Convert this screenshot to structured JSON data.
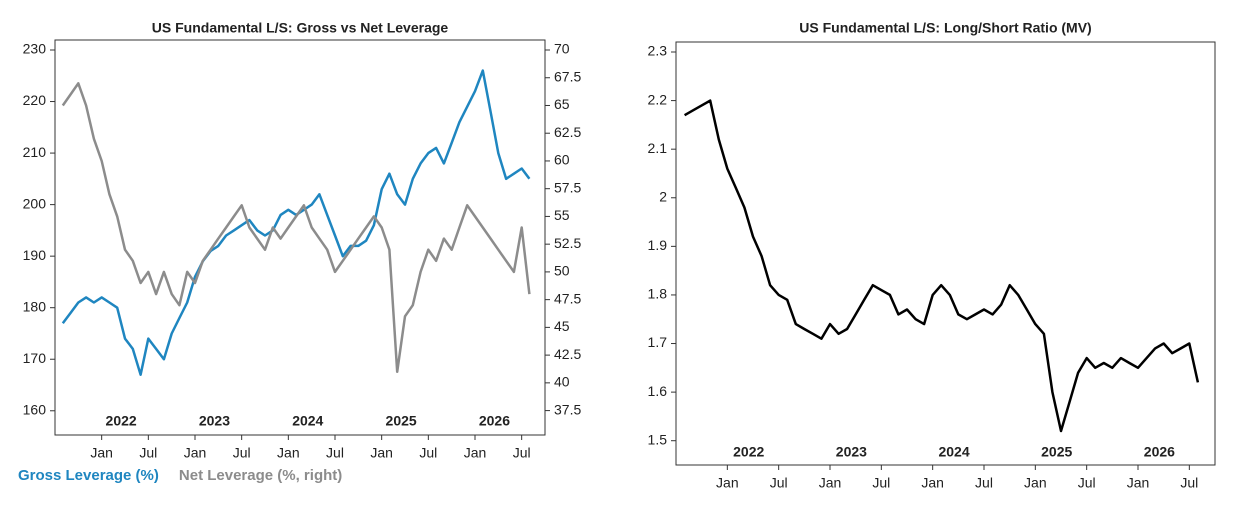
{
  "chart_data": [
    {
      "type": "line",
      "title": "US Fundamental L/S: Gross vs Net Leverage",
      "x": [
        "2021-08",
        "2021-09",
        "2021-10",
        "2021-11",
        "2021-12",
        "2022-01",
        "2022-02",
        "2022-03",
        "2022-04",
        "2022-05",
        "2022-06",
        "2022-07",
        "2022-08",
        "2022-09",
        "2022-10",
        "2022-11",
        "2022-12",
        "2023-01",
        "2023-02",
        "2023-03",
        "2023-04",
        "2023-05",
        "2023-06",
        "2023-07",
        "2023-08",
        "2023-09",
        "2023-10",
        "2023-11",
        "2023-12",
        "2024-01",
        "2024-02",
        "2024-03",
        "2024-04",
        "2024-05",
        "2024-06",
        "2024-07",
        "2024-08",
        "2024-09",
        "2024-10",
        "2024-11",
        "2024-12",
        "2025-01",
        "2025-02",
        "2025-03",
        "2025-04",
        "2025-05",
        "2025-06",
        "2025-07",
        "2025-08",
        "2025-09",
        "2025-10",
        "2025-11",
        "2025-12",
        "2026-01",
        "2026-02",
        "2026-03",
        "2026-04",
        "2026-05",
        "2026-06",
        "2026-07",
        "2026-08"
      ],
      "xlim": [
        "2021-07",
        "2026-10"
      ],
      "xticks": [
        {
          "value": "2022-01",
          "label": "Jan"
        },
        {
          "value": "2022-07",
          "label": "Jul"
        },
        {
          "value": "2023-01",
          "label": "Jan"
        },
        {
          "value": "2023-07",
          "label": "Jul"
        },
        {
          "value": "2024-01",
          "label": "Jan"
        },
        {
          "value": "2024-07",
          "label": "Jul"
        },
        {
          "value": "2025-01",
          "label": "Jan"
        },
        {
          "value": "2025-07",
          "label": "Jul"
        },
        {
          "value": "2026-01",
          "label": "Jan"
        },
        {
          "value": "2026-07",
          "label": "Jul"
        }
      ],
      "years": [
        "2022",
        "2023",
        "2024",
        "2025",
        "2026"
      ],
      "ylim": [
        155.3,
        230
      ],
      "yticks": [
        160,
        170,
        180,
        190,
        200,
        210,
        220,
        230
      ],
      "y2lim": [
        35.3,
        70
      ],
      "y2ticks": [
        37.5,
        40,
        42.5,
        45,
        47.5,
        50,
        52.5,
        55,
        57.5,
        60,
        62.5,
        65,
        67.5,
        70
      ],
      "series": [
        {
          "name": "Gross Leverage (%)",
          "color": "#1f86c0",
          "axis": "y",
          "values": [
            177,
            179,
            181,
            182,
            181,
            182,
            181,
            180,
            174,
            172,
            167,
            174,
            172,
            170,
            175,
            178,
            181,
            186,
            189,
            191,
            192,
            194,
            195,
            196,
            197,
            195,
            194,
            195,
            198,
            199,
            198,
            199,
            200,
            202,
            198,
            194,
            190,
            192,
            192,
            193,
            196,
            203,
            206,
            202,
            200,
            205,
            208,
            210,
            211,
            208,
            212,
            216,
            219,
            222,
            226,
            218,
            210,
            205,
            206,
            207,
            205
          ]
        },
        {
          "name": "Net Leverage (%, right)",
          "color": "#8c8c8c",
          "axis": "y2",
          "values": [
            65,
            66,
            67,
            65,
            62,
            60,
            57,
            55,
            52,
            51,
            49,
            50,
            48,
            50,
            48,
            47,
            50,
            49,
            51,
            52,
            53,
            54,
            55,
            56,
            54,
            53,
            52,
            54,
            53,
            54,
            55,
            56,
            54,
            53,
            52,
            50,
            51,
            52,
            53,
            54,
            55,
            54,
            52,
            41,
            46,
            47,
            50,
            52,
            51,
            53,
            52,
            54,
            56,
            55,
            54,
            53,
            52,
            51,
            50,
            54,
            48
          ]
        }
      ]
    },
    {
      "type": "line",
      "title": "US Fundamental L/S: Long/Short Ratio (MV)",
      "x": [
        "2021-08",
        "2021-09",
        "2021-10",
        "2021-11",
        "2021-12",
        "2022-01",
        "2022-02",
        "2022-03",
        "2022-04",
        "2022-05",
        "2022-06",
        "2022-07",
        "2022-08",
        "2022-09",
        "2022-10",
        "2022-11",
        "2022-12",
        "2023-01",
        "2023-02",
        "2023-03",
        "2023-04",
        "2023-05",
        "2023-06",
        "2023-07",
        "2023-08",
        "2023-09",
        "2023-10",
        "2023-11",
        "2023-12",
        "2024-01",
        "2024-02",
        "2024-03",
        "2024-04",
        "2024-05",
        "2024-06",
        "2024-07",
        "2024-08",
        "2024-09",
        "2024-10",
        "2024-11",
        "2024-12",
        "2025-01",
        "2025-02",
        "2025-03",
        "2025-04",
        "2025-05",
        "2025-06",
        "2025-07",
        "2025-08",
        "2025-09",
        "2025-10",
        "2025-11",
        "2025-12",
        "2026-01",
        "2026-02",
        "2026-03",
        "2026-04",
        "2026-05",
        "2026-06",
        "2026-07",
        "2026-08"
      ],
      "xlim": [
        "2021-07",
        "2026-10"
      ],
      "xticks": [
        {
          "value": "2022-01",
          "label": "Jan"
        },
        {
          "value": "2022-07",
          "label": "Jul"
        },
        {
          "value": "2023-01",
          "label": "Jan"
        },
        {
          "value": "2023-07",
          "label": "Jul"
        },
        {
          "value": "2024-01",
          "label": "Jan"
        },
        {
          "value": "2024-07",
          "label": "Jul"
        },
        {
          "value": "2025-01",
          "label": "Jan"
        },
        {
          "value": "2025-07",
          "label": "Jul"
        },
        {
          "value": "2026-01",
          "label": "Jan"
        },
        {
          "value": "2026-07",
          "label": "Jul"
        }
      ],
      "years": [
        "2022",
        "2023",
        "2024",
        "2025",
        "2026"
      ],
      "ylim": [
        1.45,
        2.3
      ],
      "yticks": [
        1.5,
        1.6,
        1.7,
        1.8,
        1.9,
        2,
        2.1,
        2.2,
        2.3
      ],
      "series": [
        {
          "color": "#000000",
          "axis": "y",
          "values": [
            2.17,
            2.18,
            2.19,
            2.2,
            2.12,
            2.06,
            2.02,
            1.98,
            1.92,
            1.88,
            1.82,
            1.8,
            1.79,
            1.74,
            1.73,
            1.72,
            1.71,
            1.74,
            1.72,
            1.73,
            1.76,
            1.79,
            1.82,
            1.81,
            1.8,
            1.76,
            1.77,
            1.75,
            1.74,
            1.8,
            1.82,
            1.8,
            1.76,
            1.75,
            1.76,
            1.77,
            1.76,
            1.78,
            1.82,
            1.8,
            1.77,
            1.74,
            1.72,
            1.6,
            1.52,
            1.58,
            1.64,
            1.67,
            1.65,
            1.66,
            1.65,
            1.67,
            1.66,
            1.65,
            1.67,
            1.69,
            1.7,
            1.68,
            1.69,
            1.7,
            1.62
          ]
        }
      ]
    }
  ]
}
